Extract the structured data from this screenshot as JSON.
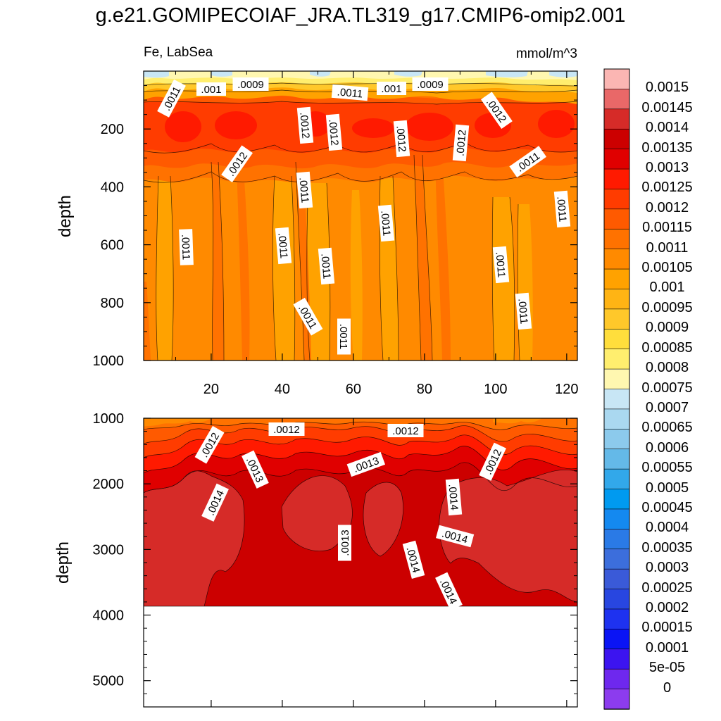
{
  "title": "g.e21.GOMIPECOIAF_JRA.TL319_g17.CMIP6-omip2.001",
  "subtitle_left": "Fe, LabSea",
  "subtitle_right": "mmol/m^3",
  "colorbar": {
    "labels": [
      "0.0015",
      "0.00145",
      "0.0014",
      "0.00135",
      "0.0013",
      "0.00125",
      "0.0012",
      "0.00115",
      "0.0011",
      "0.00105",
      "0.001",
      "0.00095",
      "0.0009",
      "0.00085",
      "0.0008",
      "0.00075",
      "0.0007",
      "0.00065",
      "0.0006",
      "0.00055",
      "0.0005",
      "0.00045",
      "0.0004",
      "0.00035",
      "0.0003",
      "0.00025",
      "0.0002",
      "0.00015",
      "0.0001",
      "5e-05",
      "0"
    ],
    "colors": [
      "#fbb6b3",
      "#e96868",
      "#d62b28",
      "#cc0000",
      "#e00000",
      "#ff1a00",
      "#ff3c00",
      "#ff5a00",
      "#ff7200",
      "#ff8a00",
      "#ffa200",
      "#ffb414",
      "#ffc82a",
      "#ffde3c",
      "#ffee6e",
      "#fff7b0",
      "#c8e6f5",
      "#aad8f0",
      "#8ccaec",
      "#64b9e8",
      "#32a8ea",
      "#009af0",
      "#1489f0",
      "#2a7ae6",
      "#3c6edc",
      "#3a5ad8",
      "#2846e0",
      "#1e32f0",
      "#0a14f5",
      "#3c14f0",
      "#6e28ee",
      "#8c3cee"
    ]
  },
  "chart_data": [
    {
      "type": "contour",
      "panel": "upper",
      "ylabel": "depth",
      "ylim": [
        1000,
        0
      ],
      "xlim": [
        1,
        123
      ],
      "x_ticks": [
        "20",
        "40",
        "60",
        "80",
        "100",
        "120"
      ],
      "y_ticks": [
        "200",
        "400",
        "600",
        "800",
        "1000"
      ],
      "contour_labels": [
        ".0011",
        ".001",
        ".0009",
        ".0011",
        ".001",
        ".0009",
        ".0012",
        ".0012",
        ".0012",
        ".0012",
        ".0012",
        ".0012",
        ".0011",
        ".0011",
        ".0011",
        ".0011",
        ".0011",
        ".0011",
        ".0011",
        ".0011",
        ".0011",
        ".0011",
        ".0011",
        ".0011",
        ".0012"
      ],
      "value_range": [
        0.0007,
        0.00125
      ]
    },
    {
      "type": "contour",
      "panel": "lower",
      "ylabel": "depth",
      "ylim": [
        5400,
        1000
      ],
      "xlim": [
        1,
        123
      ],
      "y_ticks": [
        "1000",
        "2000",
        "3000",
        "4000",
        "5000"
      ],
      "contour_labels": [
        ".0012",
        ".0012",
        ".0012",
        ".0013",
        ".0013",
        ".0012",
        ".0014",
        ".0014",
        ".0013",
        ".0014",
        ".0014",
        ".0014"
      ],
      "value_range": [
        0.00115,
        0.00145
      ],
      "max_depth": 3850
    }
  ]
}
